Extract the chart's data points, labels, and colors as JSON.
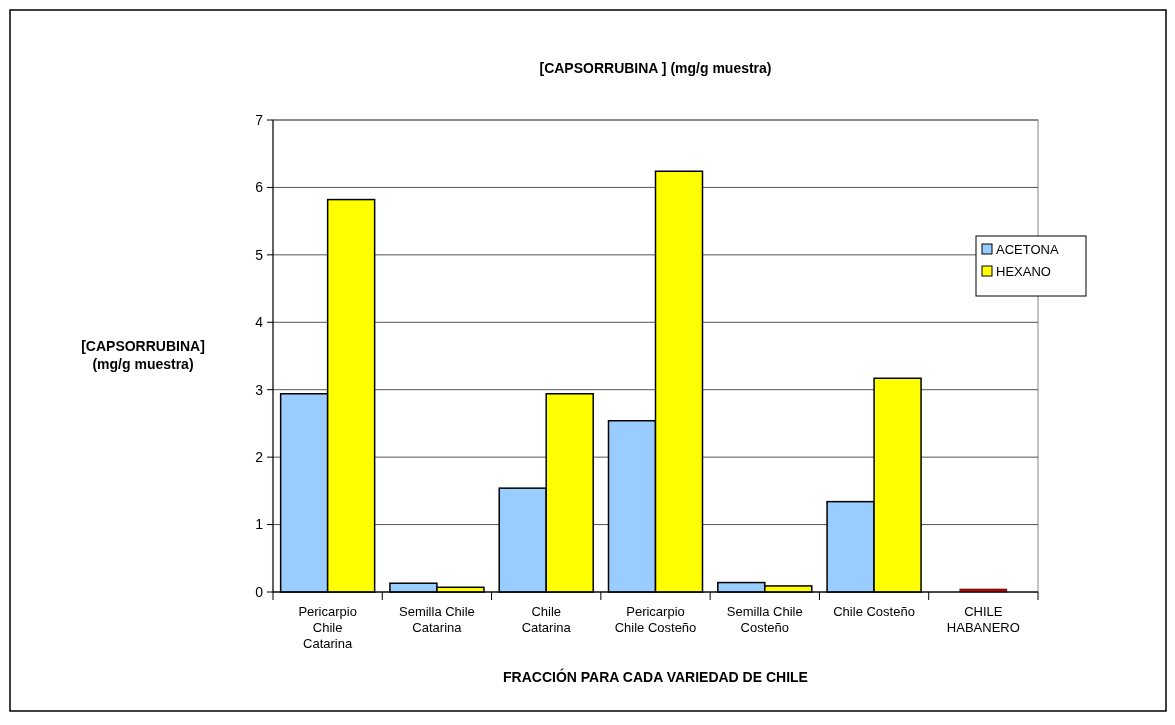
{
  "chart_data": {
    "type": "bar",
    "title": "[CAPSORRUBINA ] (mg/g muestra)",
    "xlabel": "FRACCIÓN PARA CADA VARIEDAD DE CHILE",
    "ylabel": "[CAPSORRUBINA] (mg/g muestra)",
    "categories": [
      "Pericarpio Chile Catarina",
      "Semilla Chile Catarina",
      "Chile Catarina",
      "Pericarpio Chile Costeño",
      "Semilla Chile Costeño",
      "Chile Costeño",
      "CHILE HABANERO"
    ],
    "series": [
      {
        "name": "ACETONA",
        "color": "#99ccff",
        "values": [
          2.94,
          0.13,
          1.54,
          2.54,
          0.14,
          1.34,
          null
        ]
      },
      {
        "name": "HEXANO",
        "color": "#ffff00",
        "values": [
          5.82,
          0.07,
          2.94,
          6.24,
          0.09,
          3.17,
          null
        ]
      },
      {
        "color": "#cc0000",
        "values": [
          null,
          null,
          null,
          null,
          null,
          null,
          0
        ]
      }
    ],
    "ylim": [
      0,
      7
    ],
    "yticks": [
      0,
      1,
      2,
      3,
      4,
      5,
      6,
      7
    ],
    "grid": "y",
    "legend": "right"
  }
}
